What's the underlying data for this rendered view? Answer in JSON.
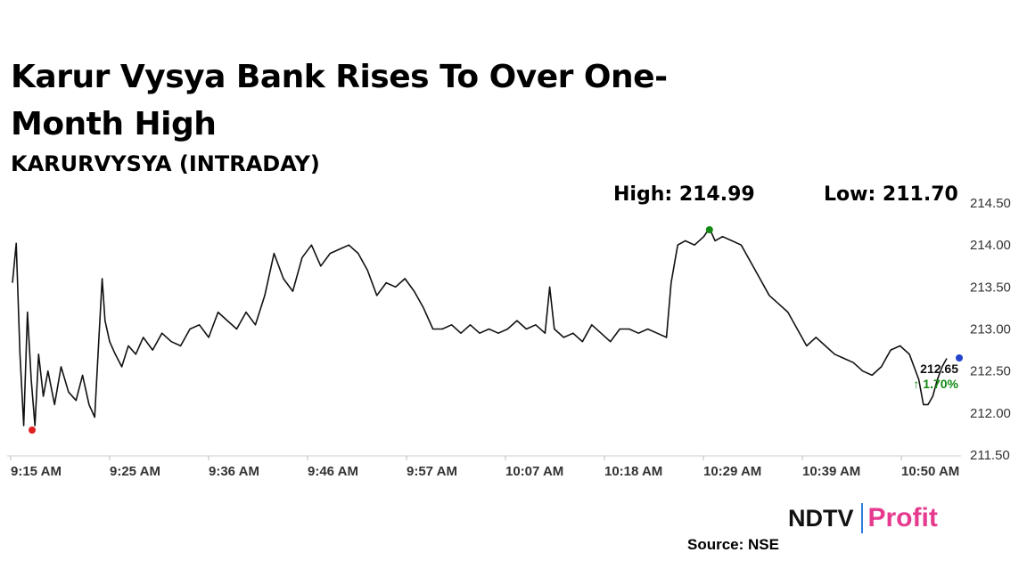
{
  "headline": "Karur Vysya Bank Rises To Over One-Month High",
  "subtitle": "KARURVYSYA (INTRADAY)",
  "high_label": "High: 214.99",
  "low_label": "Low: 211.70",
  "source": "Source: NSE",
  "logo": {
    "left": "NDTV",
    "right": "Profit"
  },
  "colors": {
    "line": "#111111",
    "high_marker": "#118a11",
    "low_marker": "#e02020",
    "last_marker": "#2244cc",
    "change_text": "#118a11",
    "logo_accent": "#e53a8e",
    "logo_bar": "#2a7de1"
  },
  "chart_data": {
    "type": "line",
    "xlabel": "",
    "ylabel": "",
    "x_ticks": [
      "9:15 AM",
      "9:25 AM",
      "9:36 AM",
      "9:46 AM",
      "9:57 AM",
      "10:07 AM",
      "10:18 AM",
      "10:29 AM",
      "10:39 AM",
      "10:50 AM"
    ],
    "y_ticks": [
      211.5,
      212.0,
      212.5,
      213.0,
      213.5,
      214.0,
      214.5
    ],
    "y_tick_labels": [
      "211.50",
      "212.00",
      "212.50",
      "213.00",
      "213.50",
      "214.00",
      "214.50"
    ],
    "ylim": [
      211.5,
      214.6
    ],
    "axis_side": "right",
    "grid": false,
    "high": {
      "value": 214.99,
      "x": 0.746
    },
    "low": {
      "value": 211.7,
      "x": 0.021
    },
    "last": {
      "price": "212.65",
      "change": "↑ 1.70%"
    },
    "points": [
      [
        0.0,
        213.55
      ],
      [
        0.004,
        214.02
      ],
      [
        0.008,
        212.7
      ],
      [
        0.012,
        211.85
      ],
      [
        0.016,
        213.2
      ],
      [
        0.02,
        212.4
      ],
      [
        0.024,
        211.85
      ],
      [
        0.028,
        212.7
      ],
      [
        0.033,
        212.2
      ],
      [
        0.038,
        212.5
      ],
      [
        0.045,
        212.1
      ],
      [
        0.052,
        212.55
      ],
      [
        0.06,
        212.25
      ],
      [
        0.068,
        212.15
      ],
      [
        0.075,
        212.45
      ],
      [
        0.082,
        212.1
      ],
      [
        0.088,
        211.95
      ],
      [
        0.093,
        213.0
      ],
      [
        0.096,
        213.6
      ],
      [
        0.099,
        213.1
      ],
      [
        0.104,
        212.85
      ],
      [
        0.11,
        212.7
      ],
      [
        0.117,
        212.55
      ],
      [
        0.124,
        212.8
      ],
      [
        0.132,
        212.7
      ],
      [
        0.14,
        212.9
      ],
      [
        0.15,
        212.75
      ],
      [
        0.16,
        212.95
      ],
      [
        0.17,
        212.85
      ],
      [
        0.18,
        212.8
      ],
      [
        0.19,
        213.0
      ],
      [
        0.2,
        213.05
      ],
      [
        0.21,
        212.9
      ],
      [
        0.22,
        213.2
      ],
      [
        0.23,
        213.1
      ],
      [
        0.24,
        213.0
      ],
      [
        0.25,
        213.2
      ],
      [
        0.26,
        213.05
      ],
      [
        0.27,
        213.4
      ],
      [
        0.28,
        213.9
      ],
      [
        0.29,
        213.6
      ],
      [
        0.3,
        213.45
      ],
      [
        0.31,
        213.85
      ],
      [
        0.32,
        214.0
      ],
      [
        0.33,
        213.75
      ],
      [
        0.34,
        213.9
      ],
      [
        0.35,
        213.95
      ],
      [
        0.36,
        214.0
      ],
      [
        0.37,
        213.9
      ],
      [
        0.38,
        213.7
      ],
      [
        0.39,
        213.4
      ],
      [
        0.4,
        213.55
      ],
      [
        0.41,
        213.5
      ],
      [
        0.42,
        213.6
      ],
      [
        0.43,
        213.45
      ],
      [
        0.44,
        213.25
      ],
      [
        0.45,
        213.0
      ],
      [
        0.46,
        213.0
      ],
      [
        0.47,
        213.05
      ],
      [
        0.48,
        212.95
      ],
      [
        0.49,
        213.05
      ],
      [
        0.5,
        212.95
      ],
      [
        0.51,
        213.0
      ],
      [
        0.52,
        212.95
      ],
      [
        0.53,
        213.0
      ],
      [
        0.54,
        213.1
      ],
      [
        0.55,
        213.0
      ],
      [
        0.56,
        213.05
      ],
      [
        0.57,
        212.95
      ],
      [
        0.575,
        213.5
      ],
      [
        0.58,
        213.0
      ],
      [
        0.59,
        212.9
      ],
      [
        0.6,
        212.95
      ],
      [
        0.61,
        212.85
      ],
      [
        0.62,
        213.05
      ],
      [
        0.63,
        212.95
      ],
      [
        0.64,
        212.85
      ],
      [
        0.65,
        213.0
      ],
      [
        0.66,
        213.0
      ],
      [
        0.67,
        212.95
      ],
      [
        0.68,
        213.0
      ],
      [
        0.69,
        212.95
      ],
      [
        0.7,
        212.9
      ],
      [
        0.705,
        213.55
      ],
      [
        0.712,
        214.0
      ],
      [
        0.72,
        214.05
      ],
      [
        0.73,
        214.0
      ],
      [
        0.74,
        214.1
      ],
      [
        0.746,
        214.2
      ],
      [
        0.752,
        214.05
      ],
      [
        0.76,
        214.1
      ],
      [
        0.77,
        214.05
      ],
      [
        0.78,
        214.0
      ],
      [
        0.79,
        213.8
      ],
      [
        0.8,
        213.6
      ],
      [
        0.81,
        213.4
      ],
      [
        0.82,
        213.3
      ],
      [
        0.83,
        213.2
      ],
      [
        0.84,
        213.0
      ],
      [
        0.85,
        212.8
      ],
      [
        0.86,
        212.9
      ],
      [
        0.87,
        212.8
      ],
      [
        0.88,
        212.7
      ],
      [
        0.89,
        212.65
      ],
      [
        0.9,
        212.6
      ],
      [
        0.91,
        212.5
      ],
      [
        0.92,
        212.45
      ],
      [
        0.93,
        212.55
      ],
      [
        0.94,
        212.75
      ],
      [
        0.95,
        212.8
      ],
      [
        0.96,
        212.7
      ],
      [
        0.965,
        212.55
      ],
      [
        0.97,
        212.4
      ],
      [
        0.975,
        212.1
      ],
      [
        0.98,
        212.1
      ],
      [
        0.985,
        212.2
      ],
      [
        0.99,
        212.4
      ],
      [
        0.995,
        212.55
      ],
      [
        1.0,
        212.65
      ]
    ]
  }
}
